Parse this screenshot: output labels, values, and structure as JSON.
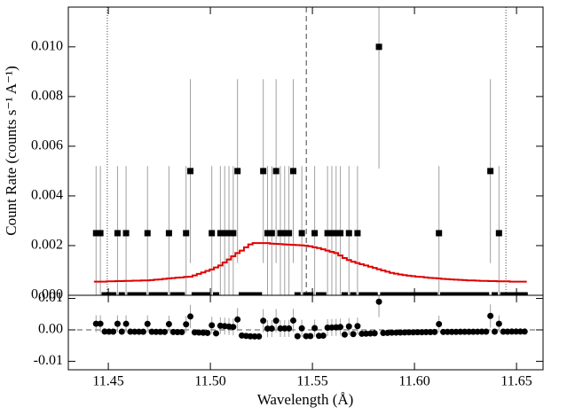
{
  "chart_data": [
    {
      "type": "spectrum",
      "ylabel": "Count Rate (counts s⁻¹ A⁻¹)",
      "xlim": [
        11.4304,
        11.663
      ],
      "ylim": [
        0,
        0.0116
      ],
      "xticks": [
        11.45,
        11.5,
        11.55,
        11.6,
        11.65
      ],
      "yticks": [
        {
          "value": 0,
          "label": "0.000"
        },
        {
          "value": 0.002,
          "label": "0.002"
        },
        {
          "value": 0.004,
          "label": "0.004"
        },
        {
          "value": 0.006,
          "label": "0.006"
        },
        {
          "value": 0.008,
          "label": "0.008"
        },
        {
          "value": 0.01,
          "label": "0.010"
        }
      ],
      "marker_color": "#000000",
      "error_color": "#a0a0a0",
      "vlines": [
        {
          "value": 11.4495,
          "style": "dotted"
        },
        {
          "value": 11.547,
          "style": "dashed"
        },
        {
          "value": 11.6448,
          "style": "dotted"
        }
      ],
      "x": [
        11.444,
        11.4461,
        11.4482,
        11.4503,
        11.4524,
        11.4545,
        11.4566,
        11.4587,
        11.4608,
        11.4629,
        11.465,
        11.4671,
        11.4692,
        11.4713,
        11.4734,
        11.4755,
        11.4776,
        11.4797,
        11.4818,
        11.4839,
        11.486,
        11.4881,
        11.4902,
        11.4923,
        11.4944,
        11.4965,
        11.4986,
        11.5007,
        11.5028,
        11.5049,
        11.507,
        11.5091,
        11.5112,
        11.5133,
        11.5154,
        11.5175,
        11.5196,
        11.5217,
        11.5238,
        11.5259,
        11.528,
        11.5301,
        11.5322,
        11.5343,
        11.5364,
        11.5385,
        11.5406,
        11.5427,
        11.5448,
        11.5469,
        11.549,
        11.5511,
        11.5532,
        11.5553,
        11.5574,
        11.5595,
        11.5616,
        11.5637,
        11.5658,
        11.5679,
        11.57,
        11.5721,
        11.5742,
        11.5763,
        11.5784,
        11.5805,
        11.5826,
        11.5847,
        11.5868,
        11.5889,
        11.591,
        11.5931,
        11.5952,
        11.5973,
        11.5994,
        11.6015,
        11.6036,
        11.6057,
        11.6078,
        11.6099,
        11.612,
        11.6141,
        11.6162,
        11.6183,
        11.6204,
        11.6225,
        11.6246,
        11.6267,
        11.6288,
        11.6309,
        11.633,
        11.6351,
        11.6372,
        11.6393,
        11.6414,
        11.6435,
        11.6456,
        11.6477,
        11.6498,
        11.6519,
        11.654
      ],
      "values": [
        0.0025,
        0.0025,
        0,
        0,
        0,
        0.0025,
        0,
        0.0025,
        0,
        0,
        0,
        0,
        0.0025,
        0,
        0,
        0,
        0,
        0.0025,
        0,
        0,
        0,
        0.0025,
        0.005,
        0,
        0,
        0,
        0,
        0.0025,
        0,
        0.0025,
        0.0025,
        0.0025,
        0.0025,
        0.005,
        0,
        0,
        0,
        0,
        0,
        0.005,
        0.0025,
        0.0025,
        0.005,
        0.0025,
        0.0025,
        0.0025,
        0.005,
        0,
        0.0025,
        0,
        0,
        0.0025,
        0,
        0,
        0.0025,
        0.0025,
        0.0025,
        0.0025,
        0,
        0.0025,
        0,
        0.0025,
        0,
        0,
        0,
        0,
        0.01,
        0,
        0,
        0,
        0,
        0,
        0,
        0,
        0,
        0,
        0,
        0,
        0,
        0,
        0.0025,
        0,
        0,
        0,
        0,
        0,
        0,
        0,
        0,
        0,
        0,
        0,
        0.005,
        0,
        0.0025,
        0,
        0,
        0,
        0,
        0,
        0
      ],
      "errors": [
        0.0027,
        0.0027,
        0,
        0,
        0,
        0.0027,
        0,
        0.0027,
        0,
        0,
        0,
        0,
        0.0027,
        0,
        0,
        0,
        0,
        0.0027,
        0,
        0,
        0,
        0.0027,
        0.0037,
        0,
        0,
        0,
        0,
        0.0027,
        0,
        0.0027,
        0.0027,
        0.0027,
        0.0027,
        0.0037,
        0,
        0,
        0,
        0,
        0,
        0.0037,
        0.0027,
        0.0027,
        0.0037,
        0.0027,
        0.0027,
        0.0027,
        0.0037,
        0,
        0.0027,
        0,
        0,
        0.0027,
        0,
        0,
        0.0027,
        0.0027,
        0.0027,
        0.0027,
        0,
        0.0027,
        0,
        0.0027,
        0,
        0,
        0,
        0,
        0.0049,
        0,
        0,
        0,
        0,
        0,
        0,
        0,
        0,
        0,
        0,
        0,
        0,
        0,
        0.0027,
        0,
        0,
        0,
        0,
        0,
        0,
        0,
        0,
        0,
        0,
        0,
        0.0037,
        0,
        0.0027,
        0,
        0,
        0,
        0,
        0,
        0
      ],
      "model": {
        "color": "#e00000",
        "values": [
          0.00055,
          0.00055,
          0.00055,
          0.00056,
          0.00056,
          0.00057,
          0.00057,
          0.00058,
          0.00058,
          0.00059,
          0.00059,
          0.0006,
          0.0006,
          0.00061,
          0.00063,
          0.00064,
          0.00066,
          0.00068,
          0.00069,
          0.00071,
          0.00072,
          0.00074,
          0.00075,
          0.0008,
          0.00086,
          0.00092,
          0.00098,
          0.00104,
          0.00112,
          0.0012,
          0.00132,
          0.00144,
          0.00157,
          0.0017,
          0.0018,
          0.00193,
          0.00205,
          0.0021,
          0.0021,
          0.0021,
          0.0021,
          0.00208,
          0.00207,
          0.00206,
          0.00205,
          0.00204,
          0.00203,
          0.00202,
          0.00201,
          0.002,
          0.00197,
          0.00193,
          0.0019,
          0.00185,
          0.0018,
          0.00175,
          0.0017,
          0.0016,
          0.0015,
          0.00142,
          0.00135,
          0.0013,
          0.00125,
          0.0012,
          0.00115,
          0.0011,
          0.00105,
          0.001,
          0.00095,
          0.0009,
          0.00087,
          0.00084,
          0.00081,
          0.00079,
          0.00077,
          0.00075,
          0.00074,
          0.00072,
          0.0007,
          0.00069,
          0.00068,
          0.00066,
          0.00065,
          0.00064,
          0.00063,
          0.00062,
          0.00061,
          0.0006,
          0.0006,
          0.00059,
          0.00058,
          0.00058,
          0.00057,
          0.00057,
          0.00056,
          0.00056,
          0.00056,
          0.00055,
          0.00055,
          0.00055,
          0.00055
        ]
      }
    },
    {
      "type": "residual",
      "xlabel": "Wavelength (Å)",
      "xlim": [
        11.4304,
        11.663
      ],
      "ylim": [
        -0.0127,
        0.011
      ],
      "xticks": [
        11.45,
        {
          "value": 11.5,
          "label": "11.50"
        },
        11.55,
        {
          "value": 11.6,
          "label": "11.60"
        },
        11.65
      ],
      "yticks": [
        -0.01,
        {
          "value": 0,
          "label": "0.00"
        },
        0.01
      ],
      "marker_color": "#000000",
      "error_color": "#a0a0a0",
      "x": [
        11.444,
        11.4461,
        11.4482,
        11.4503,
        11.4524,
        11.4545,
        11.4566,
        11.4587,
        11.4608,
        11.4629,
        11.465,
        11.4671,
        11.4692,
        11.4713,
        11.4734,
        11.4755,
        11.4776,
        11.4797,
        11.4818,
        11.4839,
        11.486,
        11.4881,
        11.4902,
        11.4923,
        11.4944,
        11.4965,
        11.4986,
        11.5007,
        11.5028,
        11.5049,
        11.507,
        11.5091,
        11.5112,
        11.5133,
        11.5154,
        11.5175,
        11.5196,
        11.5217,
        11.5238,
        11.5259,
        11.528,
        11.5301,
        11.5322,
        11.5343,
        11.5364,
        11.5385,
        11.5406,
        11.5427,
        11.5448,
        11.5469,
        11.549,
        11.5511,
        11.5532,
        11.5553,
        11.5574,
        11.5595,
        11.5616,
        11.5637,
        11.5658,
        11.5679,
        11.57,
        11.5721,
        11.5742,
        11.5763,
        11.5784,
        11.5805,
        11.5826,
        11.5847,
        11.5868,
        11.5889,
        11.591,
        11.5931,
        11.5952,
        11.5973,
        11.5994,
        11.6015,
        11.6036,
        11.6057,
        11.6078,
        11.6099,
        11.612,
        11.6141,
        11.6162,
        11.6183,
        11.6204,
        11.6225,
        11.6246,
        11.6267,
        11.6288,
        11.6309,
        11.633,
        11.6351,
        11.6372,
        11.6393,
        11.6414,
        11.6435,
        11.6456,
        11.6477,
        11.6498,
        11.6519,
        11.654
      ],
      "values": [
        0.00195,
        0.00195,
        -0.00055,
        -0.00056,
        -0.00056,
        0.00193,
        -0.00057,
        0.00192,
        -0.00058,
        -0.00059,
        -0.00059,
        -0.0006,
        0.0019,
        -0.00061,
        -0.00063,
        -0.00064,
        -0.00066,
        0.00182,
        -0.00069,
        -0.00071,
        -0.00072,
        0.00176,
        0.00425,
        -0.0008,
        -0.00086,
        -0.00092,
        -0.00098,
        0.00146,
        -0.00112,
        0.0013,
        0.00118,
        0.00106,
        0.00093,
        0.0033,
        -0.0018,
        -0.00193,
        -0.00205,
        -0.0021,
        -0.0021,
        0.0029,
        0.0004,
        0.00042,
        0.00293,
        0.00044,
        0.00045,
        0.00046,
        0.00297,
        -0.00202,
        0.00049,
        -0.002,
        -0.00197,
        0.00057,
        -0.0019,
        -0.00185,
        0.0007,
        0.00075,
        0.0008,
        0.0009,
        -0.0015,
        0.00108,
        -0.00135,
        0.0012,
        -0.00125,
        -0.0012,
        -0.00115,
        -0.0011,
        0.00895,
        -0.001,
        -0.00095,
        -0.0009,
        -0.00087,
        -0.00084,
        -0.00081,
        -0.00079,
        -0.00077,
        -0.00075,
        -0.00074,
        -0.00072,
        -0.0007,
        -0.00069,
        0.00182,
        -0.00066,
        -0.00065,
        -0.00064,
        -0.00063,
        -0.00062,
        -0.00061,
        -0.0006,
        -0.0006,
        -0.00059,
        -0.00058,
        -0.00058,
        0.00443,
        -0.00057,
        0.00194,
        -0.00056,
        -0.00056,
        -0.00055,
        -0.00055,
        -0.00055,
        -0.00055
      ],
      "errors": [
        0.0027,
        0.0027,
        0,
        0,
        0,
        0.0027,
        0,
        0.0027,
        0,
        0,
        0,
        0,
        0.0027,
        0,
        0,
        0,
        0,
        0.0027,
        0,
        0,
        0,
        0.0027,
        0.0037,
        0,
        0,
        0,
        0,
        0.0027,
        0,
        0.0027,
        0.0027,
        0.0027,
        0.0027,
        0.0037,
        0,
        0,
        0,
        0,
        0,
        0.0037,
        0.0027,
        0.0027,
        0.0037,
        0.0027,
        0.0027,
        0.0027,
        0.0037,
        0,
        0.0027,
        0,
        0,
        0.0027,
        0,
        0,
        0.0027,
        0.0027,
        0.0027,
        0.0027,
        0,
        0.0027,
        0,
        0.0027,
        0,
        0,
        0,
        0,
        0.0049,
        0,
        0,
        0,
        0,
        0,
        0,
        0,
        0,
        0,
        0,
        0,
        0,
        0,
        0.0027,
        0,
        0,
        0,
        0,
        0,
        0,
        0,
        0,
        0,
        0,
        0,
        0.0037,
        0,
        0.0027,
        0,
        0,
        0,
        0,
        0,
        0
      ]
    }
  ]
}
